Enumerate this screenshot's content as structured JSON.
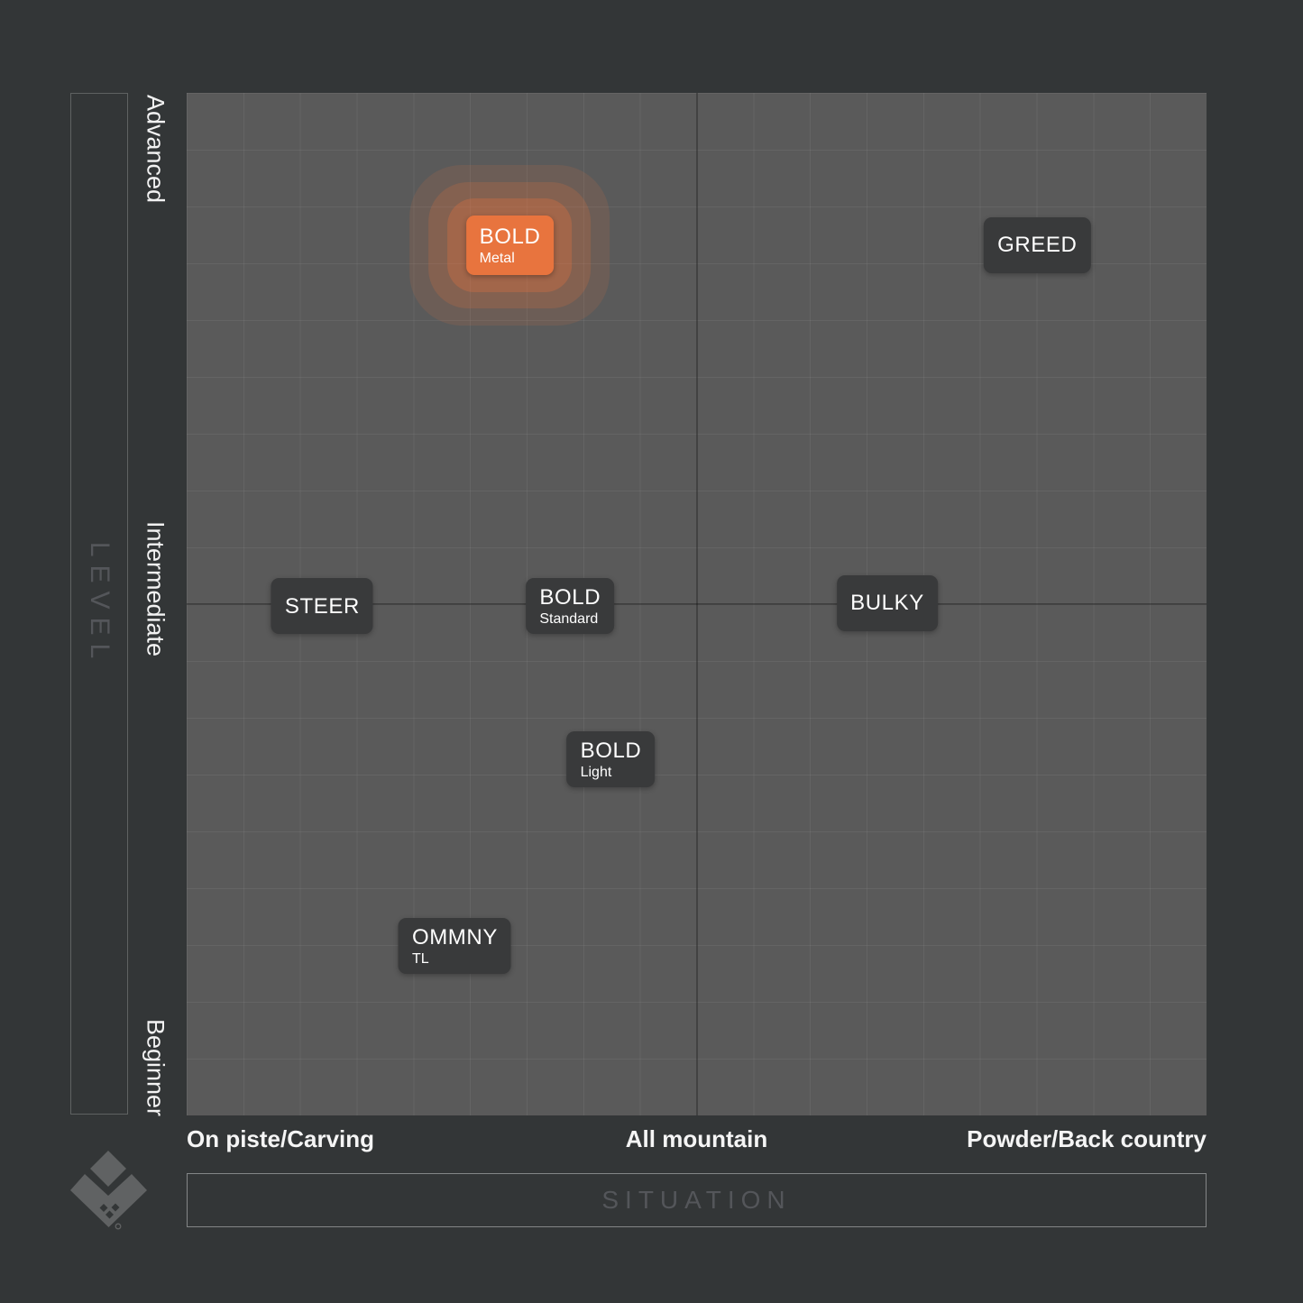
{
  "chart_data": {
    "type": "scatter",
    "title": "",
    "xlabel": "SITUATION",
    "ylabel": "LEVEL",
    "x_categories": [
      "On piste/Carving",
      "All mountain",
      "Powder/Back country"
    ],
    "y_categories": [
      "Beginner",
      "Intermediate",
      "Advanced"
    ],
    "x_range": [
      0,
      1
    ],
    "y_range": [
      0,
      1
    ],
    "grid": {
      "columns": 18,
      "rows": 18,
      "major_line_at": 0.5,
      "grid_on": true
    },
    "points": [
      {
        "label": "BOLD",
        "sublabel": "Metal",
        "x": 0.317,
        "y": 0.851,
        "highlighted": true
      },
      {
        "label": "GREED",
        "sublabel": "",
        "x": 0.834,
        "y": 0.851,
        "highlighted": false
      },
      {
        "label": "STEER",
        "sublabel": "",
        "x": 0.133,
        "y": 0.498,
        "highlighted": false
      },
      {
        "label": "BOLD",
        "sublabel": "Standard",
        "x": 0.376,
        "y": 0.498,
        "highlighted": false
      },
      {
        "label": "BULKY",
        "sublabel": "",
        "x": 0.687,
        "y": 0.501,
        "highlighted": false
      },
      {
        "label": "BOLD",
        "sublabel": "Light",
        "x": 0.416,
        "y": 0.348,
        "highlighted": false
      },
      {
        "label": "OMMNY",
        "sublabel": "TL",
        "x": 0.263,
        "y": 0.166,
        "highlighted": false
      }
    ]
  },
  "icons": {
    "logo": "brand-diamond-chevron-logo"
  },
  "colors": {
    "background": "#333637",
    "plot_background": "#5A5A5A",
    "badge_background": "#393A3B",
    "accent_orange": "#E8743E",
    "label_text": "#F2F2F2",
    "muted_text": "#54565A"
  }
}
